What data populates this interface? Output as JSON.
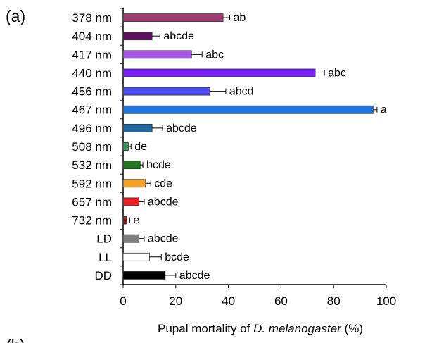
{
  "panel": {
    "label": "(a)",
    "next_label": "(b)"
  },
  "chart_data": {
    "type": "bar",
    "orientation": "horizontal",
    "categories": [
      "378 nm",
      "404 nm",
      "417 nm",
      "440 nm",
      "456 nm",
      "467 nm",
      "496 nm",
      "508 nm",
      "532 nm",
      "592 nm",
      "657 nm",
      "732 nm",
      "LD",
      "LL",
      "DD"
    ],
    "values": [
      38,
      11,
      26,
      73,
      33,
      95,
      11,
      2,
      6.5,
      8.5,
      6,
      1.5,
      6,
      10,
      16
    ],
    "errors": [
      2.5,
      3,
      4,
      3.5,
      6,
      1.5,
      4,
      1,
      1,
      2,
      2,
      1,
      2,
      4.5,
      4
    ],
    "significance": [
      "ab",
      "abcde",
      "abc",
      "abc",
      "abcd",
      "a",
      "abcde",
      "de",
      "bcde",
      "cde",
      "abcde",
      "e",
      "abcde",
      "bcde",
      "abcde"
    ],
    "colors": [
      "#9b3d6f",
      "#5b0f5f",
      "#a855e8",
      "#7a1ff5",
      "#4a4af0",
      "#1f74e0",
      "#1f6aa5",
      "#2e9a5e",
      "#1f7a1f",
      "#f5a020",
      "#ee1c24",
      "#8e1a1a",
      "#7f7f7f",
      "#ffffff",
      "#000000"
    ],
    "xlim": [
      0,
      100
    ],
    "xticks": [
      0,
      20,
      40,
      60,
      80,
      100
    ],
    "xlabel": {
      "prefix": "Pupal mortality of ",
      "species": "D. melanogaster",
      "suffix": " (%)"
    },
    "grid": false,
    "legend": "none"
  }
}
